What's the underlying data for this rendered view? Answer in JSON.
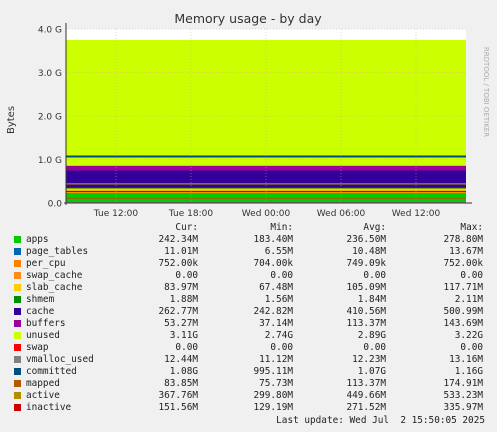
{
  "chart_data": {
    "type": "area",
    "title": "Memory usage - by day",
    "ylabel": "Bytes",
    "watermark": "RRDTOOL / TOBI OETIKER",
    "y_ticks": [
      "0.0",
      "1.0 G",
      "2.0 G",
      "3.0 G",
      "4.0 G"
    ],
    "ylim": [
      0,
      4.0
    ],
    "x_ticks": [
      "Tue 12:00",
      "Tue 18:00",
      "Wed 00:00",
      "Wed 06:00",
      "Wed 12:00"
    ],
    "stacked": true,
    "grid": true,
    "columns": [
      "Cur:",
      "Min:",
      "Avg:",
      "Max:"
    ],
    "series": [
      {
        "name": "apps",
        "color": "#00cc00",
        "cur": "242.34M",
        "min": "183.40M",
        "avg": "236.50M",
        "max": "278.80M"
      },
      {
        "name": "page_tables",
        "color": "#0066b3",
        "cur": "11.01M",
        "min": "6.55M",
        "avg": "10.48M",
        "max": "13.67M"
      },
      {
        "name": "per_cpu",
        "color": "#ff8000",
        "cur": "752.00k",
        "min": "704.00k",
        "avg": "749.09k",
        "max": "752.00k"
      },
      {
        "name": "swap_cache",
        "color": "#ff8c1a",
        "cur": "0.00",
        "min": "0.00",
        "avg": "0.00",
        "max": "0.00"
      },
      {
        "name": "slab_cache",
        "color": "#ffcc00",
        "cur": "83.97M",
        "min": "67.48M",
        "avg": "105.09M",
        "max": "117.71M"
      },
      {
        "name": "shmem",
        "color": "#008f00",
        "cur": "1.88M",
        "min": "1.56M",
        "avg": "1.84M",
        "max": "2.11M"
      },
      {
        "name": "cache",
        "color": "#330099",
        "cur": "262.77M",
        "min": "242.82M",
        "avg": "410.56M",
        "max": "500.99M"
      },
      {
        "name": "buffers",
        "color": "#990099",
        "cur": "53.27M",
        "min": "37.14M",
        "avg": "113.37M",
        "max": "143.69M"
      },
      {
        "name": "unused",
        "color": "#ccff00",
        "cur": "3.11G",
        "min": "2.74G",
        "avg": "2.89G",
        "max": "3.22G"
      },
      {
        "name": "swap",
        "color": "#ff0000",
        "cur": "0.00",
        "min": "0.00",
        "avg": "0.00",
        "max": "0.00"
      },
      {
        "name": "vmalloc_used",
        "color": "#808080",
        "cur": "12.44M",
        "min": "11.12M",
        "avg": "12.23M",
        "max": "13.16M"
      },
      {
        "name": "committed",
        "color": "#004d80",
        "cur": "1.08G",
        "min": "995.11M",
        "avg": "1.07G",
        "max": "1.16G"
      },
      {
        "name": "mapped",
        "color": "#b35a00",
        "cur": "83.85M",
        "min": "75.73M",
        "avg": "113.37M",
        "max": "174.91M"
      },
      {
        "name": "active",
        "color": "#b38f00",
        "cur": "367.76M",
        "min": "299.80M",
        "avg": "449.66M",
        "max": "533.23M"
      },
      {
        "name": "inactive",
        "color": "#cc0000",
        "cur": "151.56M",
        "min": "129.19M",
        "avg": "271.52M",
        "max": "335.97M"
      }
    ]
  },
  "footer": "Last update: Wed Jul  2 15:50:05 2025"
}
